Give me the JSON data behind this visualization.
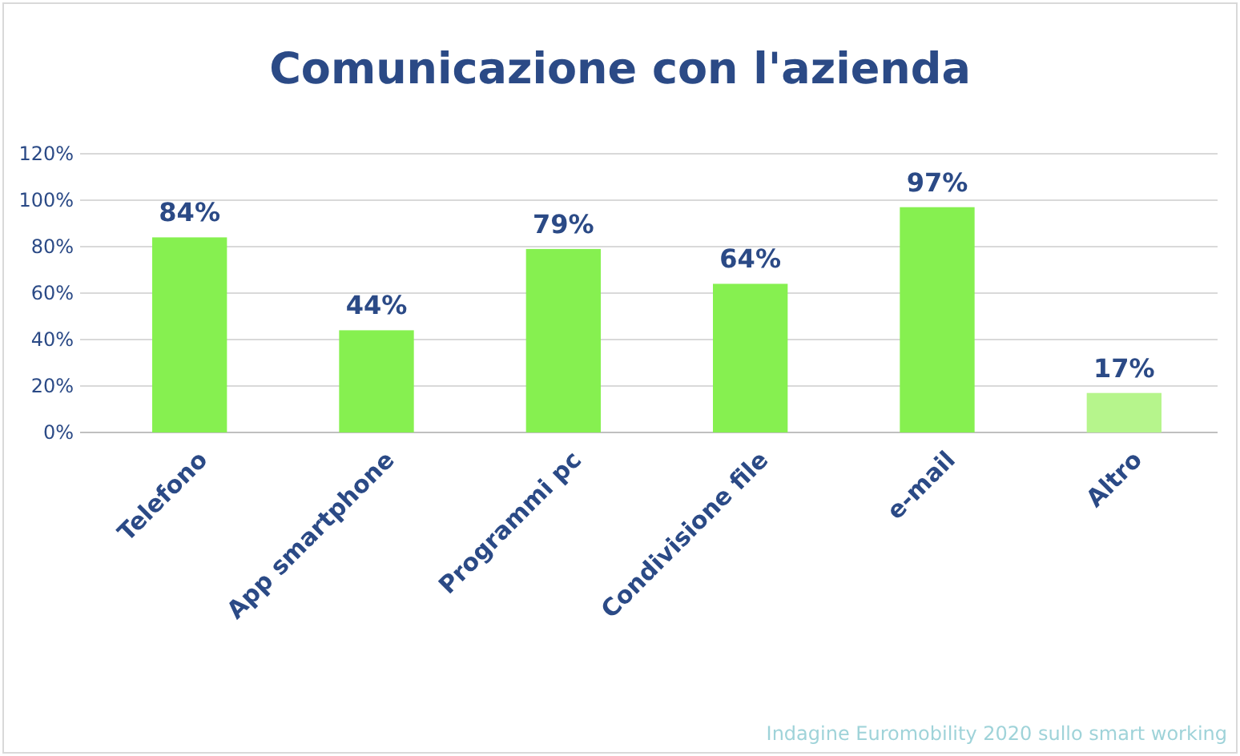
{
  "chart_data": {
    "type": "bar",
    "title": "Comunicazione con l'azienda",
    "categories": [
      "Telefono",
      "App smartphone",
      "Programmi pc",
      "Condivisione file",
      "e-mail",
      "Altro"
    ],
    "values": [
      84,
      44,
      79,
      64,
      97,
      17
    ],
    "colors": [
      "#86f050",
      "#86f050",
      "#86f050",
      "#86f050",
      "#86f050",
      "#b6f58c"
    ],
    "value_labels": [
      "84%",
      "44%",
      "79%",
      "64%",
      "97%",
      "17%"
    ],
    "ylim": [
      0,
      120
    ],
    "yticks": [
      {
        "value": 0,
        "label": "0%"
      },
      {
        "value": 20,
        "label": "20%"
      },
      {
        "value": 40,
        "label": "40%"
      },
      {
        "value": 60,
        "label": "60%"
      },
      {
        "value": 80,
        "label": "80%"
      },
      {
        "value": 100,
        "label": "100%"
      },
      {
        "value": 120,
        "label": "120%"
      }
    ],
    "grid": "y",
    "annotations": [
      "Indagine Euromobility 2020 sullo smart working"
    ]
  }
}
